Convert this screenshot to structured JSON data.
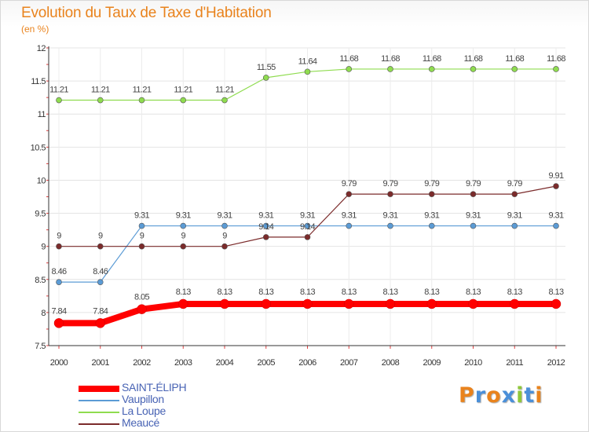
{
  "chart_data": {
    "type": "line",
    "title": "Evolution du Taux de Taxe d'Habitation",
    "subtitle": "(en %)",
    "xlabel": "",
    "ylabel": "",
    "x": [
      "2000",
      "2001",
      "2002",
      "2003",
      "2004",
      "2005",
      "2006",
      "2007",
      "2008",
      "2009",
      "2010",
      "2011",
      "2012"
    ],
    "ylim": [
      7.5,
      12
    ],
    "yticks": [
      "7.5",
      "8",
      "8.5",
      "9",
      "9.5",
      "10",
      "10.5",
      "11",
      "11.5",
      "12"
    ],
    "grid": true,
    "legend_position": "bottom-left",
    "series": [
      {
        "name": "SAINT-ÉLIPH",
        "color": "#ff0000",
        "values": [
          7.84,
          7.84,
          8.05,
          8.13,
          8.13,
          8.13,
          8.13,
          8.13,
          8.13,
          8.13,
          8.13,
          8.13,
          8.13
        ],
        "labels": [
          "7.84",
          "7.84",
          "8.05",
          "8.13",
          "8.13",
          "8.13",
          "8.13",
          "8.13",
          "8.13",
          "8.13",
          "8.13",
          "8.13",
          "8.13"
        ]
      },
      {
        "name": "Vaupillon",
        "color": "#5b9bd5",
        "values": [
          8.46,
          8.46,
          9.31,
          9.31,
          9.31,
          9.31,
          9.31,
          9.31,
          9.31,
          9.31,
          9.31,
          9.31,
          9.31
        ],
        "labels": [
          "8.46",
          "8.46",
          "9.31",
          "9.31",
          "9.31",
          "9.31",
          "9.31",
          "9.31",
          "9.31",
          "9.31",
          "9.31",
          "9.31",
          "9.31"
        ]
      },
      {
        "name": "La Loupe",
        "color": "#8fdc4f",
        "values": [
          11.21,
          11.21,
          11.21,
          11.21,
          11.21,
          11.55,
          11.64,
          11.68,
          11.68,
          11.68,
          11.68,
          11.68,
          11.68
        ],
        "labels": [
          "11.21",
          "11.21",
          "11.21",
          "11.21",
          "11.21",
          "11.55",
          "11.64",
          "11.68",
          "11.68",
          "11.68",
          "11.68",
          "11.68",
          "11.68"
        ]
      },
      {
        "name": "Meaucé",
        "color": "#7b2b2b",
        "values": [
          9,
          9,
          9,
          9,
          9,
          9.14,
          9.14,
          9.79,
          9.79,
          9.79,
          9.79,
          9.79,
          9.91
        ],
        "labels": [
          "9",
          "9",
          "9",
          "9",
          "9",
          "9.14",
          "9.14",
          "9.79",
          "9.79",
          "9.79",
          "9.79",
          "9.79",
          "9.91"
        ]
      }
    ]
  },
  "logo": {
    "text": "Proxiti",
    "letters": [
      "P",
      "r",
      "o",
      "x",
      "i",
      "t",
      "i"
    ],
    "colors": [
      "#e9831d",
      "#4a8fd9",
      "#e9831d",
      "#4a8fd9",
      "#8fc83a",
      "#4a8fd9",
      "#e9831d"
    ]
  }
}
